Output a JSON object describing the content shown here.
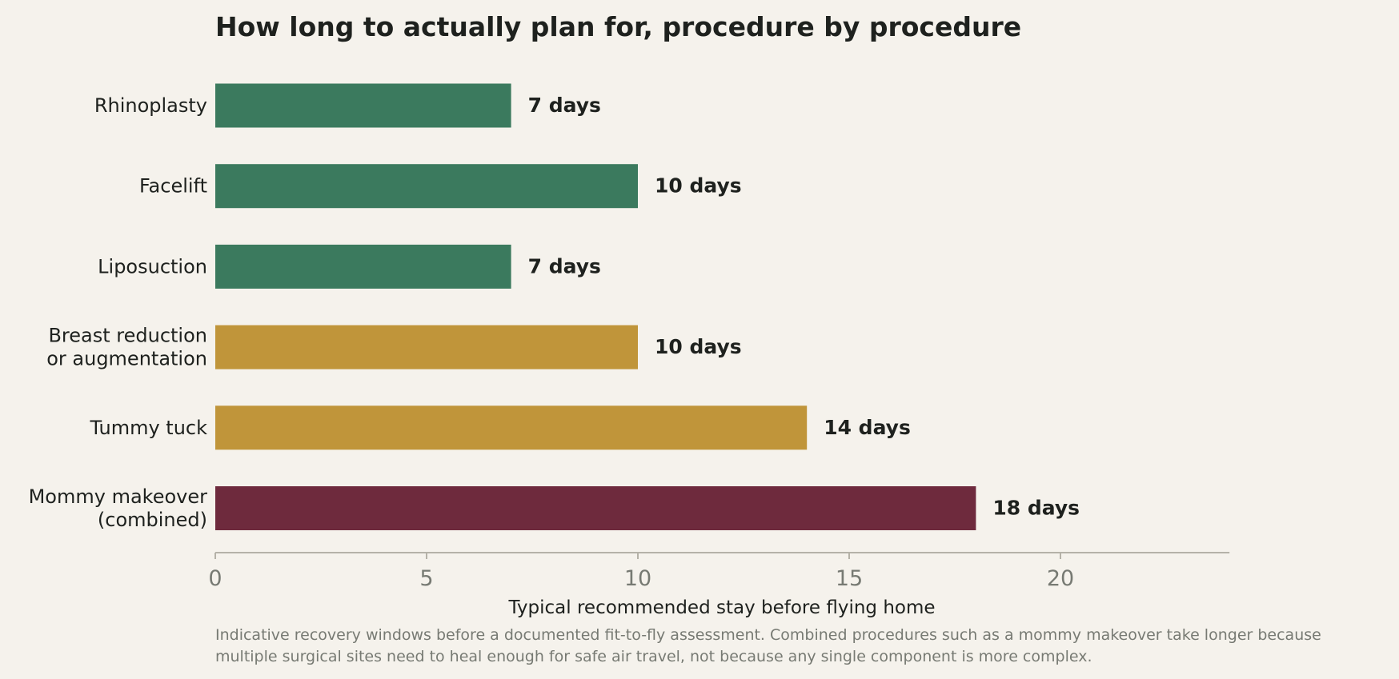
{
  "colors": {
    "background": "#f5f2ec",
    "text": "#1e211e",
    "muted": "#777a73",
    "axis": "#b5b2a8"
  },
  "chart_data": {
    "type": "bar",
    "orientation": "horizontal",
    "title": "How long to actually plan for, procedure by procedure",
    "xlabel": "Typical recommended stay before flying home",
    "ylabel": "",
    "caption": [
      "Indicative recovery windows before a documented fit-to-fly assessment. Combined procedures such as a mommy makeover take longer because",
      "multiple surgical sites need to heal enough for safe air travel, not because any single component is more complex."
    ],
    "xlim": [
      0,
      24
    ],
    "xticks": [
      0,
      5,
      10,
      15,
      20
    ],
    "grid": false,
    "categories": [
      [
        "Rhinoplasty"
      ],
      [
        "Facelift"
      ],
      [
        "Liposuction"
      ],
      [
        "Breast reduction",
        "or augmentation"
      ],
      [
        "Tummy tuck"
      ],
      [
        "Mommy makeover",
        "(combined)"
      ]
    ],
    "values": [
      7,
      10,
      7,
      10,
      14,
      18
    ],
    "value_labels": [
      "7 days",
      "10 days",
      "7 days",
      "10 days",
      "14 days",
      "18 days"
    ],
    "bar_colors": [
      "#3b7a5e",
      "#3b7a5e",
      "#3b7a5e",
      "#c0953a",
      "#c0953a",
      "#6e2a3d"
    ]
  }
}
